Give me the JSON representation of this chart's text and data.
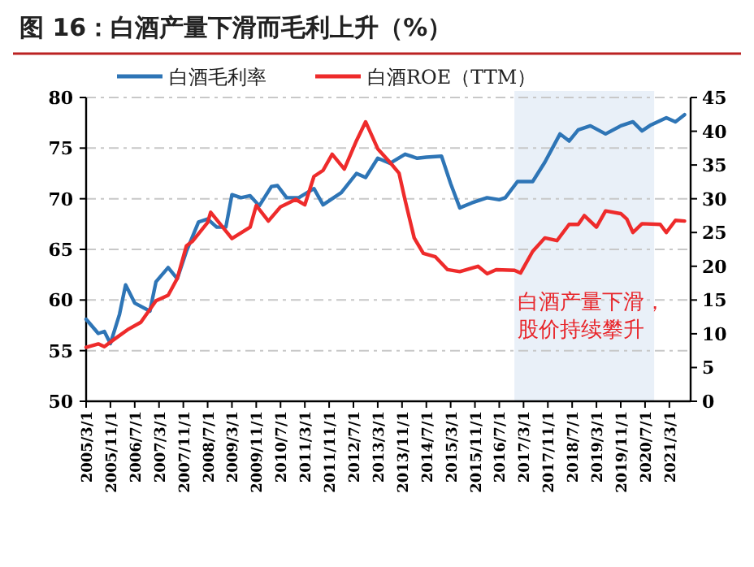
{
  "chart_data": {
    "type": "line",
    "title": "图 16：白酒产量下滑而毛利上升（%）",
    "xlim": [
      "2005-03-01",
      "2021-10-01"
    ],
    "xticks": [
      {
        "value": "2005-03-01",
        "label": "2005/3/1"
      },
      {
        "value": "2005-11-01",
        "label": "2005/11/1"
      },
      {
        "value": "2006-07-01",
        "label": "2006/7/1"
      },
      {
        "value": "2007-03-01",
        "label": "2007/3/1"
      },
      {
        "value": "2007-11-01",
        "label": "2007/11/1"
      },
      {
        "value": "2008-07-01",
        "label": "2008/7/1"
      },
      {
        "value": "2009-03-01",
        "label": "2009/3/1"
      },
      {
        "value": "2009-11-01",
        "label": "2009/11/1"
      },
      {
        "value": "2010-07-01",
        "label": "2010/7/1"
      },
      {
        "value": "2011-03-01",
        "label": "2011/3/1"
      },
      {
        "value": "2011-11-01",
        "label": "2011/11/1"
      },
      {
        "value": "2012-07-01",
        "label": "2012/7/1"
      },
      {
        "value": "2013-03-01",
        "label": "2013/3/1"
      },
      {
        "value": "2013-11-01",
        "label": "2013/11/1"
      },
      {
        "value": "2014-07-01",
        "label": "2014/7/1"
      },
      {
        "value": "2015-03-01",
        "label": "2015/3/1"
      },
      {
        "value": "2015-11-01",
        "label": "2015/11/1"
      },
      {
        "value": "2016-07-01",
        "label": "2016/7/1"
      },
      {
        "value": "2017-03-01",
        "label": "2017/3/1"
      },
      {
        "value": "2017-11-01",
        "label": "2017/11/1"
      },
      {
        "value": "2018-07-01",
        "label": "2018/7/1"
      },
      {
        "value": "2019-03-01",
        "label": "2019/3/1"
      },
      {
        "value": "2019-11-01",
        "label": "2019/11/1"
      },
      {
        "value": "2020-07-01",
        "label": "2020/7/1"
      },
      {
        "value": "2021-03-01",
        "label": "2021/3/1"
      }
    ],
    "ylim": [
      50,
      80
    ],
    "yticks": [
      50,
      55,
      60,
      65,
      70,
      75,
      80
    ],
    "y2lim": [
      0,
      45
    ],
    "y2ticks": [
      0,
      5,
      10,
      15,
      20,
      25,
      30,
      35,
      40,
      45
    ],
    "grid": "y",
    "legend": "top",
    "marker": "none",
    "line_style": "solid",
    "bands": [
      {
        "axis": "x",
        "from": "2016-12",
        "to": "2020-10",
        "label": "白酒产量下滑，股价持续攀升",
        "color": "#e9f0f8"
      }
    ],
    "series": [
      {
        "name": "白酒毛利率",
        "color": "#2e75b6",
        "x": [
          "2005-03",
          "2005-07",
          "2005-09",
          "2005-11",
          "2006-02",
          "2006-04",
          "2006-07",
          "2006-12",
          "2007-02",
          "2007-06",
          "2007-09",
          "2007-12",
          "2008-04",
          "2008-07",
          "2008-10",
          "2009-01",
          "2009-03",
          "2009-06",
          "2009-09",
          "2009-12",
          "2010-04",
          "2010-06",
          "2010-09",
          "2011-01",
          "2011-06",
          "2011-09",
          "2012-03",
          "2012-08",
          "2012-11",
          "2013-03",
          "2013-07",
          "2013-12",
          "2014-04",
          "2014-07",
          "2014-12",
          "2015-03",
          "2015-06",
          "2015-10",
          "2016-03",
          "2016-07",
          "2016-09",
          "2017-01",
          "2017-06",
          "2017-10",
          "2018-03",
          "2018-06",
          "2018-09",
          "2019-01",
          "2019-06",
          "2019-11",
          "2020-03",
          "2020-06",
          "2020-09",
          "2021-02",
          "2021-05",
          "2021-08"
        ],
        "values": [
          58.1,
          56.7,
          56.9,
          55.7,
          58.6,
          61.5,
          59.7,
          58.9,
          61.8,
          63.2,
          62.1,
          64.8,
          67.7,
          68.0,
          67.2,
          67.2,
          70.4,
          70.1,
          70.3,
          69.3,
          71.2,
          71.3,
          70.1,
          70.1,
          71.0,
          69.4,
          70.6,
          72.5,
          72.1,
          74.0,
          73.5,
          74.4,
          74.0,
          74.1,
          74.2,
          71.5,
          69.1,
          69.6,
          70.1,
          69.9,
          70.1,
          71.7,
          71.7,
          73.6,
          76.4,
          75.7,
          76.8,
          77.2,
          76.4,
          77.2,
          77.6,
          76.7,
          77.3,
          78.0,
          77.6,
          78.3
        ]
      },
      {
        "name": "白酒ROE（TTM）",
        "color": "#ee2b2b",
        "axis": "y2",
        "x": [
          "2005-03",
          "2005-07",
          "2005-09",
          "2005-12",
          "2006-05",
          "2006-09",
          "2007-02",
          "2007-06",
          "2007-09",
          "2007-12",
          "2008-02",
          "2008-07",
          "2008-08",
          "2009-03",
          "2009-09",
          "2009-11",
          "2010-03",
          "2010-07",
          "2010-12",
          "2011-03",
          "2011-06",
          "2011-09",
          "2011-12",
          "2012-04",
          "2012-08",
          "2012-11",
          "2013-03",
          "2013-07",
          "2013-10",
          "2013-12",
          "2014-03",
          "2014-06",
          "2014-10",
          "2015-02",
          "2015-06",
          "2015-12",
          "2016-03",
          "2016-06",
          "2016-12",
          "2017-02",
          "2017-06",
          "2017-10",
          "2018-02",
          "2018-06",
          "2018-09",
          "2018-11",
          "2019-03",
          "2019-06",
          "2019-11",
          "2020-01",
          "2020-03",
          "2020-06",
          "2020-12",
          "2021-02",
          "2021-05",
          "2021-08"
        ],
        "values": [
          8.0,
          8.5,
          8.1,
          9.1,
          10.7,
          11.7,
          14.9,
          15.7,
          18.2,
          23.0,
          23.7,
          26.5,
          28.0,
          24.1,
          25.8,
          29.0,
          26.7,
          28.8,
          29.9,
          29.1,
          33.3,
          34.2,
          36.6,
          34.4,
          38.6,
          41.4,
          37.4,
          35.4,
          33.8,
          29.8,
          24.2,
          21.9,
          21.4,
          19.5,
          19.2,
          20.0,
          18.9,
          19.5,
          19.4,
          19.0,
          22.2,
          24.2,
          23.8,
          26.2,
          26.2,
          27.5,
          25.8,
          28.2,
          27.8,
          27.0,
          25.0,
          26.3,
          26.2,
          25.0,
          26.8,
          26.7
        ]
      }
    ]
  }
}
